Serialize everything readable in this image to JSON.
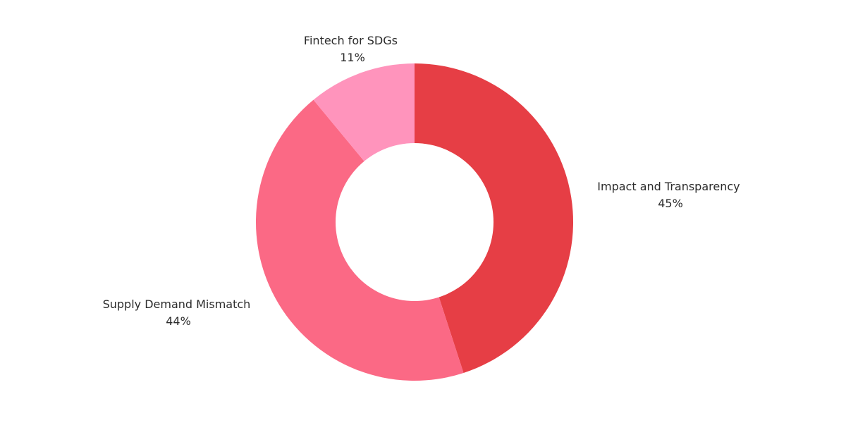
{
  "chart_data": {
    "type": "pie",
    "variant": "donut",
    "title": "",
    "grid": false,
    "legend": "none",
    "slices": [
      {
        "label": "Impact and Transparency",
        "value": 45,
        "value_label": "45%",
        "color": "#e63e45"
      },
      {
        "label": "Supply Demand Mismatch",
        "value": 44,
        "value_label": "44%",
        "color": "#fb6985"
      },
      {
        "label": "Fintech for SDGs",
        "value": 11,
        "value_label": "11%",
        "color": "#ff94bc"
      }
    ]
  }
}
